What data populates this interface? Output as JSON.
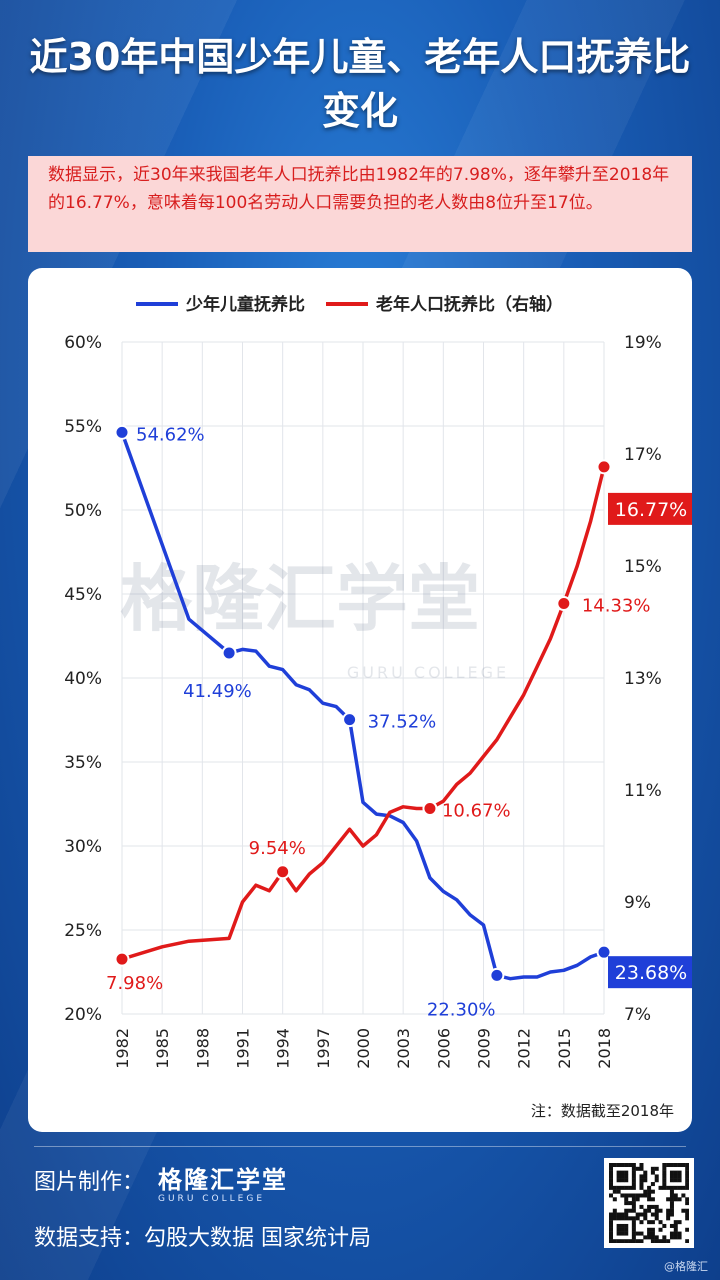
{
  "title": "近30年中国少年儿童、老年人口抚养比变化",
  "summary": "数据显示，近30年来我国老年人口抚养比由1982年的7.98%，逐年攀升至2018年的16.77%，意味着每100名劳动人口需要负担的老人数由8位升至17位。",
  "watermark": {
    "main": "格隆汇学堂",
    "sub": "GURU COLLEGE"
  },
  "note": "注：数据截至2018年",
  "footer": {
    "made_by_label": "图片制作：",
    "brand": "格隆汇学堂",
    "brand_sub": "GURU COLLEGE",
    "data_support": "数据支持：勾股大数据 国家统计局",
    "credit": "@格隆汇"
  },
  "chart_data": {
    "type": "line",
    "legend_placement": "top",
    "left_axis": {
      "ylim": [
        20,
        60
      ],
      "ticks": [
        "20%",
        "25%",
        "30%",
        "35%",
        "40%",
        "45%",
        "50%",
        "55%",
        "60%"
      ]
    },
    "right_axis": {
      "ylim": [
        7,
        19
      ],
      "ticks": [
        "7%",
        "9%",
        "11%",
        "13%",
        "15%",
        "17%",
        "19%"
      ]
    },
    "xlim": [
      1982,
      2018
    ],
    "x_ticks": [
      "1982",
      "1985",
      "1988",
      "1991",
      "1994",
      "1997",
      "2000",
      "2003",
      "2006",
      "2009",
      "2012",
      "2015",
      "2018"
    ],
    "colors": {
      "youth": "#1f3fd8",
      "elderly": "#e01a1a"
    },
    "series": [
      {
        "name": "少年儿童抚养比",
        "axis": "left",
        "x": [
          1982,
          1987,
          1990,
          1991,
          1992,
          1993,
          1994,
          1995,
          1996,
          1997,
          1998,
          1999,
          2000,
          2001,
          2002,
          2003,
          2004,
          2005,
          2006,
          2007,
          2008,
          2009,
          2010,
          2011,
          2012,
          2013,
          2014,
          2015,
          2016,
          2017,
          2018
        ],
        "values": [
          54.62,
          43.5,
          41.49,
          41.7,
          41.6,
          40.7,
          40.5,
          39.6,
          39.3,
          38.5,
          38.3,
          37.52,
          32.6,
          31.9,
          31.8,
          31.4,
          30.3,
          28.1,
          27.3,
          26.8,
          25.9,
          25.3,
          22.3,
          22.1,
          22.2,
          22.2,
          22.5,
          22.6,
          22.9,
          23.4,
          23.68
        ],
        "labels": [
          {
            "x": 1982,
            "text": "54.62%"
          },
          {
            "x": 1990,
            "text": "41.49%"
          },
          {
            "x": 1999,
            "text": "37.52%"
          },
          {
            "x": 2010,
            "text": "22.30%"
          },
          {
            "x": 2018,
            "text": "23.68%",
            "boxed": true
          }
        ]
      },
      {
        "name": "老年人口抚养比（右轴）",
        "axis": "right",
        "x": [
          1982,
          1985,
          1987,
          1990,
          1991,
          1992,
          1993,
          1994,
          1995,
          1996,
          1997,
          1998,
          1999,
          2000,
          2001,
          2002,
          2003,
          2004,
          2005,
          2006,
          2007,
          2008,
          2009,
          2010,
          2011,
          2012,
          2013,
          2014,
          2015,
          2016,
          2017,
          2018
        ],
        "values": [
          7.98,
          8.2,
          8.3,
          8.35,
          9.0,
          9.3,
          9.2,
          9.54,
          9.2,
          9.5,
          9.7,
          10.0,
          10.3,
          10.0,
          10.2,
          10.6,
          10.7,
          10.67,
          10.67,
          10.8,
          11.1,
          11.3,
          11.6,
          11.9,
          12.3,
          12.7,
          13.2,
          13.7,
          14.33,
          15.0,
          15.8,
          16.77
        ],
        "labels": [
          {
            "x": 1982,
            "text": "7.98%"
          },
          {
            "x": 1994,
            "text": "9.54%"
          },
          {
            "x": 2005,
            "text": "10.67%"
          },
          {
            "x": 2015,
            "text": "14.33%"
          },
          {
            "x": 2018,
            "text": "16.77%",
            "boxed": true
          }
        ]
      }
    ]
  }
}
